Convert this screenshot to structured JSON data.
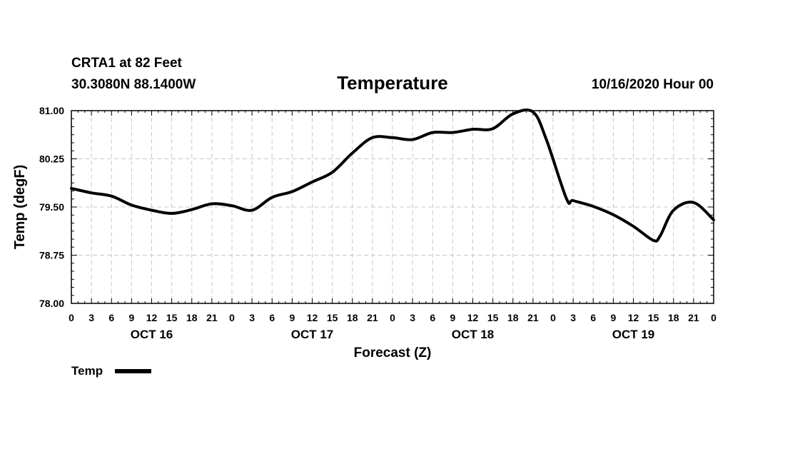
{
  "header": {
    "station": "CRTA1 at 82 Feet",
    "location": "30.3080N 88.1400W",
    "title": "Temperature",
    "run": "10/16/2020 Hour 00"
  },
  "chart_data": {
    "type": "line",
    "title": "Temperature",
    "xlabel": "Forecast (Z)",
    "ylabel": "Temp (degF)",
    "ylim": [
      78.0,
      81.0
    ],
    "yticks": [
      "81.00",
      "80.25",
      "79.50",
      "78.75",
      "78.00"
    ],
    "xlim_hours": [
      0,
      96
    ],
    "xtick_labels": [
      "0",
      "3",
      "6",
      "9",
      "12",
      "15",
      "18",
      "21",
      "0",
      "3",
      "6",
      "9",
      "12",
      "15",
      "18",
      "21",
      "0",
      "3",
      "6",
      "9",
      "12",
      "15",
      "18",
      "21",
      "0",
      "3",
      "6",
      "9",
      "12",
      "15",
      "18",
      "21",
      "0"
    ],
    "day_labels": [
      {
        "label": "OCT 16",
        "hour": 12
      },
      {
        "label": "OCT 17",
        "hour": 36
      },
      {
        "label": "OCT 18",
        "hour": 60
      },
      {
        "label": "OCT 19",
        "hour": 84
      }
    ],
    "legend": "top-left below axis",
    "grid": true,
    "series": [
      {
        "name": "Temp",
        "color": "#000000",
        "x": [
          0,
          3,
          6,
          9,
          12,
          15,
          18,
          21,
          24,
          27,
          30,
          33,
          36,
          39,
          42,
          45,
          48,
          51,
          54,
          57,
          60,
          63,
          66,
          69,
          71,
          74,
          75,
          78,
          81,
          84,
          87,
          88,
          90,
          93,
          96
        ],
        "values": [
          79.79,
          79.72,
          79.67,
          79.53,
          79.45,
          79.4,
          79.46,
          79.55,
          79.52,
          79.45,
          79.65,
          79.74,
          79.89,
          80.04,
          80.34,
          80.58,
          80.58,
          80.55,
          80.66,
          80.66,
          80.71,
          80.72,
          80.95,
          80.98,
          80.55,
          79.63,
          79.6,
          79.51,
          79.38,
          79.2,
          78.98,
          79.05,
          79.45,
          79.57,
          79.3
        ]
      }
    ]
  }
}
